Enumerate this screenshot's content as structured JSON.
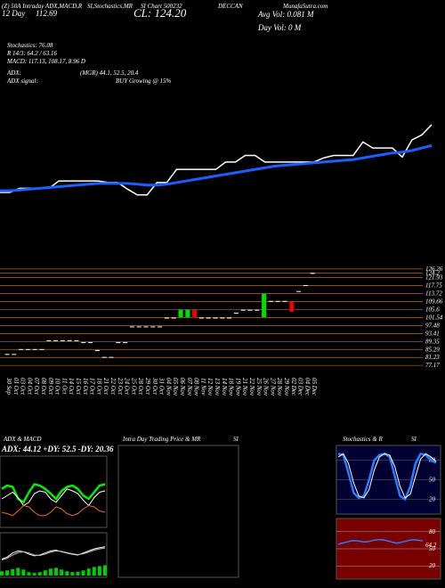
{
  "header": {
    "title_left": "(Z) 50A Intraday ADX,MACD,R",
    "title_mid": "SI,Stochastics,MR",
    "title_chart": "SI Chart 500232",
    "symbol": "DECCAN",
    "site": "MunafaSutra.com",
    "day_label": "12 Day",
    "day_value": "112.69",
    "close": "CL: 124.20",
    "avg_vol": "Avg Vol: 0.081 M",
    "day_vol": "Day Vol: 0  M"
  },
  "indicators": [
    "Stochastics: 76.08",
    "R 14/3: 64.2 / 63.16",
    "MACD: 117.13, 108.17, 8.96 D",
    "ADX:",
    "(MGR) 44.1, 52.5, 20.4",
    "ADX  signal:",
    "BUY Growing @ 15%"
  ],
  "main_chart": {
    "dates": [
      "30 Sep",
      "01 Oct",
      "03 Oct",
      "04 Oct",
      "07 Oct",
      "08 Oct",
      "09 Oct",
      "10 Oct",
      "11 Oct",
      "14 Oct",
      "15 Oct",
      "16 Oct",
      "17 Oct",
      "18 Oct",
      "21 Oct",
      "22 Oct",
      "23 Oct",
      "24 Oct",
      "25 Oct",
      "28 Oct",
      "29 Oct",
      "30 Oct",
      "31 Oct",
      "04 Nov",
      "05 Nov",
      "06 Nov",
      "07 Nov",
      "08 Nov",
      "11 Nov",
      "12 Nov",
      "13 Nov",
      "14 Nov",
      "18 Nov",
      "19 Nov",
      "21 Nov",
      "22 Nov",
      "25 Nov",
      "26 Nov",
      "27 Nov",
      "28 Nov",
      "29 Nov",
      "02 Dec",
      "03 Dec",
      "04 Dec",
      "05 Dec"
    ],
    "open": [
      83,
      83,
      85.5,
      85.5,
      85.5,
      85.5,
      90,
      90,
      90,
      90,
      90,
      89,
      89,
      85,
      81.5,
      81.5,
      89,
      89,
      97,
      97,
      97,
      97,
      97,
      101.5,
      101.5,
      101.5,
      101.5,
      105.5,
      101.5,
      101.5,
      101.5,
      101.5,
      101.5,
      104,
      105.5,
      105.5,
      105.5,
      101.5,
      110,
      110,
      110,
      109.5,
      115,
      118,
      124.2
    ],
    "close": [
      83,
      83,
      85.5,
      85.5,
      85.5,
      85.5,
      90,
      90,
      90,
      90,
      90,
      89,
      89,
      85,
      81.5,
      81.5,
      89,
      89,
      97,
      97,
      97,
      97,
      97,
      101.5,
      101.5,
      105.5,
      105.5,
      101.5,
      101.5,
      101.5,
      101.5,
      101.5,
      101.5,
      104,
      105.5,
      105.5,
      105.5,
      113.7,
      110,
      110,
      110,
      104.5,
      115,
      118,
      124.2
    ],
    "ma": [
      84,
      84,
      84.5,
      85,
      85.5,
      86,
      86.5,
      87,
      87.5,
      88,
      88.5,
      88.5,
      88.5,
      88.5,
      88,
      87.5,
      87.5,
      88,
      89,
      90,
      91,
      92,
      93,
      94,
      95,
      96,
      97,
      98,
      99,
      99.5,
      100,
      100.5,
      101,
      101.5,
      102,
      102.5,
      103,
      104,
      105,
      106,
      107,
      107.5,
      108.5,
      110,
      111.5
    ],
    "ylim": [
      75,
      128
    ],
    "line_ylim": [
      70,
      135
    ],
    "yticks": [
      126.26,
      124.2,
      121.93,
      117.75,
      113.72,
      109.66,
      105.6,
      101.54,
      97.48,
      93.41,
      89.35,
      85.29,
      81.23,
      77.17
    ],
    "up_color": "#00dd00",
    "down_color": "#ee0000",
    "ma_color": "#1e5eff",
    "price_color": "#ffffff",
    "grid_color": "#b86a1a"
  },
  "adx_panel": {
    "title": "ADX & MACD",
    "info": "ADX: 44.12 +DY: 52.5 -DY: 20.36",
    "adx": [
      55,
      60,
      58,
      40,
      35,
      50,
      62,
      60,
      55,
      48,
      40,
      52,
      58,
      60,
      55,
      45,
      40,
      50,
      60,
      62
    ],
    "plus_di": [
      40,
      45,
      50,
      42,
      30,
      35,
      48,
      52,
      50,
      40,
      35,
      45,
      55,
      52,
      48,
      38,
      30,
      42,
      50,
      52
    ],
    "minus_di": [
      20,
      18,
      15,
      22,
      30,
      28,
      20,
      15,
      15,
      20,
      28,
      25,
      18,
      15,
      18,
      25,
      30,
      28,
      22,
      20
    ],
    "ylim": [
      0,
      100
    ],
    "macd": [
      40,
      45,
      55,
      60,
      58,
      52,
      48,
      50,
      55,
      60,
      62,
      58,
      55,
      52,
      50,
      55,
      60,
      65,
      68,
      70
    ],
    "signal": [
      38,
      42,
      50,
      56,
      58,
      55,
      50,
      49,
      52,
      57,
      60,
      59,
      56,
      53,
      51,
      53,
      57,
      62,
      65,
      67
    ],
    "hist": [
      10,
      12,
      15,
      18,
      14,
      8,
      6,
      8,
      12,
      16,
      18,
      14,
      10,
      8,
      9,
      12,
      16,
      20,
      22,
      24
    ]
  },
  "intraday_panel": {
    "title": "Intra Day Trading Price & MR",
    "title_end": "SI"
  },
  "stoch_panel": {
    "title": "Stochastics & R",
    "title_end": "SI",
    "stoch": [
      90,
      88,
      60,
      30,
      22,
      25,
      50,
      80,
      88,
      90,
      85,
      55,
      25,
      20,
      40,
      75,
      90,
      88,
      80,
      76
    ],
    "stoch_signal": [
      85,
      90,
      75,
      45,
      25,
      22,
      35,
      65,
      85,
      90,
      88,
      70,
      40,
      22,
      28,
      55,
      82,
      90,
      85,
      78
    ],
    "ylim": [
      0,
      100
    ],
    "yticks": [
      80,
      50,
      20
    ],
    "rsi": [
      58,
      60,
      62,
      64,
      64,
      63,
      62,
      63,
      65,
      66,
      66,
      64,
      62,
      60,
      61,
      63,
      65,
      66,
      65,
      64
    ],
    "rsi_label": "64.2",
    "rsi_yticks": [
      80,
      50,
      20
    ]
  }
}
